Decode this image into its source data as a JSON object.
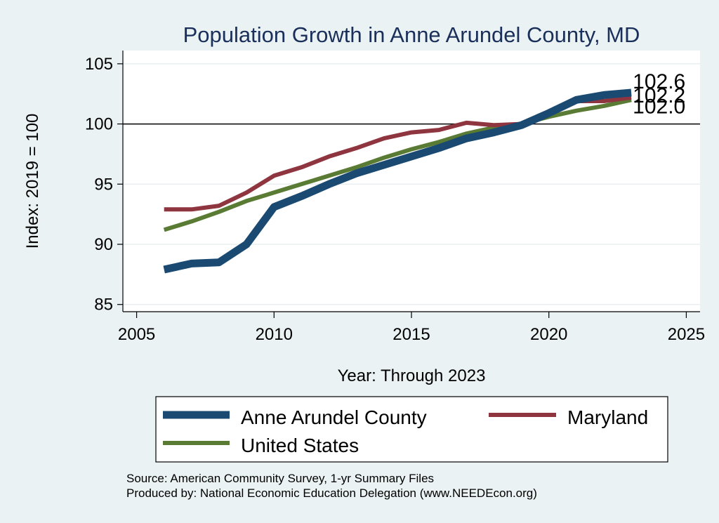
{
  "chart_data": {
    "type": "line",
    "title": "Population Growth in Anne Arundel County, MD",
    "xlabel": "Year: Through 2023",
    "ylabel": "Index: 2019 = 100",
    "xlim": [
      2004.5,
      2025.5
    ],
    "ylim": [
      84.4,
      106.1
    ],
    "xticks": [
      2005,
      2010,
      2015,
      2020,
      2025
    ],
    "yticks": [
      85,
      90,
      95,
      100,
      105
    ],
    "reference_line": 100,
    "x": [
      2006,
      2007,
      2008,
      2009,
      2010,
      2011,
      2012,
      2013,
      2014,
      2015,
      2016,
      2017,
      2018,
      2019,
      2020,
      2021,
      2022,
      2023
    ],
    "series": [
      {
        "name": "Anne Arundel  County",
        "color": "#1a4a72",
        "values": [
          87.9,
          88.4,
          88.5,
          90.0,
          93.1,
          94.0,
          95.0,
          95.9,
          96.6,
          97.3,
          98.0,
          98.8,
          99.3,
          99.9,
          100.9,
          102.0,
          102.4,
          102.6
        ],
        "end_label": "102.6"
      },
      {
        "name": "Maryland",
        "color": "#8e353f",
        "values": [
          92.9,
          92.9,
          93.2,
          94.3,
          95.7,
          96.4,
          97.3,
          98.0,
          98.8,
          99.3,
          99.5,
          100.1,
          99.9,
          100.0,
          100.8,
          101.9,
          101.9,
          102.2
        ],
        "end_label": "102.2"
      },
      {
        "name": "United States",
        "color": "#5a7b34",
        "values": [
          91.2,
          91.9,
          92.7,
          93.6,
          94.3,
          95.0,
          95.7,
          96.4,
          97.2,
          97.9,
          98.5,
          99.2,
          99.7,
          100.0,
          100.6,
          101.1,
          101.5,
          102.0
        ],
        "end_label": "102.0"
      }
    ],
    "legend_position": "bottom"
  },
  "source_lines": [
    "Source: American Community Survey, 1-yr Summary Files",
    "Produced by: National Economic Education Delegation (www.NEEDEcon.org)"
  ]
}
